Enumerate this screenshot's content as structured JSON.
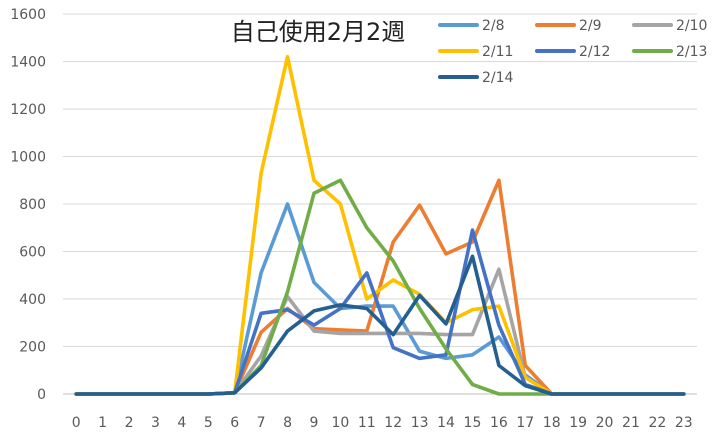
{
  "chart_data": {
    "type": "line",
    "title": "自己使用2月2週",
    "xlabel": "",
    "ylabel": "",
    "x": [
      0,
      1,
      2,
      3,
      4,
      5,
      6,
      7,
      8,
      9,
      10,
      11,
      12,
      13,
      14,
      15,
      16,
      17,
      18,
      19,
      20,
      21,
      22,
      23
    ],
    "ylim": [
      0,
      1600
    ],
    "yticks": [
      0,
      200,
      400,
      600,
      800,
      1000,
      1200,
      1400,
      1600
    ],
    "grid": true,
    "legend_position": "top-right",
    "series": [
      {
        "name": "2/8",
        "color": "#5B9BD5",
        "values": [
          0,
          0,
          0,
          0,
          0,
          0,
          5,
          510,
          800,
          470,
          360,
          370,
          370,
          180,
          150,
          165,
          240,
          80,
          0,
          0,
          0,
          0,
          0,
          0
        ]
      },
      {
        "name": "2/9",
        "color": "#ED7D31",
        "values": [
          0,
          0,
          0,
          0,
          0,
          0,
          5,
          260,
          360,
          275,
          270,
          265,
          640,
          795,
          590,
          640,
          900,
          120,
          0,
          0,
          0,
          0,
          0,
          0
        ]
      },
      {
        "name": "2/10",
        "color": "#A5A5A5",
        "values": [
          0,
          0,
          0,
          0,
          0,
          0,
          5,
          160,
          410,
          265,
          255,
          255,
          255,
          255,
          250,
          250,
          525,
          70,
          0,
          0,
          0,
          0,
          0,
          0
        ]
      },
      {
        "name": "2/11",
        "color": "#FFC000",
        "values": [
          0,
          0,
          0,
          0,
          0,
          0,
          5,
          930,
          1420,
          900,
          800,
          400,
          480,
          420,
          300,
          355,
          370,
          70,
          0,
          0,
          0,
          0,
          0,
          0
        ]
      },
      {
        "name": "2/12",
        "color": "#4472C4",
        "values": [
          0,
          0,
          0,
          0,
          0,
          0,
          5,
          340,
          355,
          290,
          360,
          510,
          195,
          150,
          165,
          690,
          290,
          40,
          0,
          0,
          0,
          0,
          0,
          0
        ]
      },
      {
        "name": "2/13",
        "color": "#70AD47",
        "values": [
          0,
          0,
          0,
          0,
          0,
          0,
          5,
          120,
          430,
          845,
          900,
          700,
          560,
          360,
          190,
          40,
          0,
          0,
          0,
          0,
          0,
          0,
          0,
          0
        ]
      },
      {
        "name": "2/14",
        "color": "#255E91",
        "values": [
          0,
          0,
          0,
          0,
          0,
          0,
          5,
          110,
          265,
          350,
          375,
          360,
          250,
          415,
          295,
          580,
          120,
          35,
          0,
          0,
          0,
          0,
          0,
          0
        ]
      }
    ]
  }
}
